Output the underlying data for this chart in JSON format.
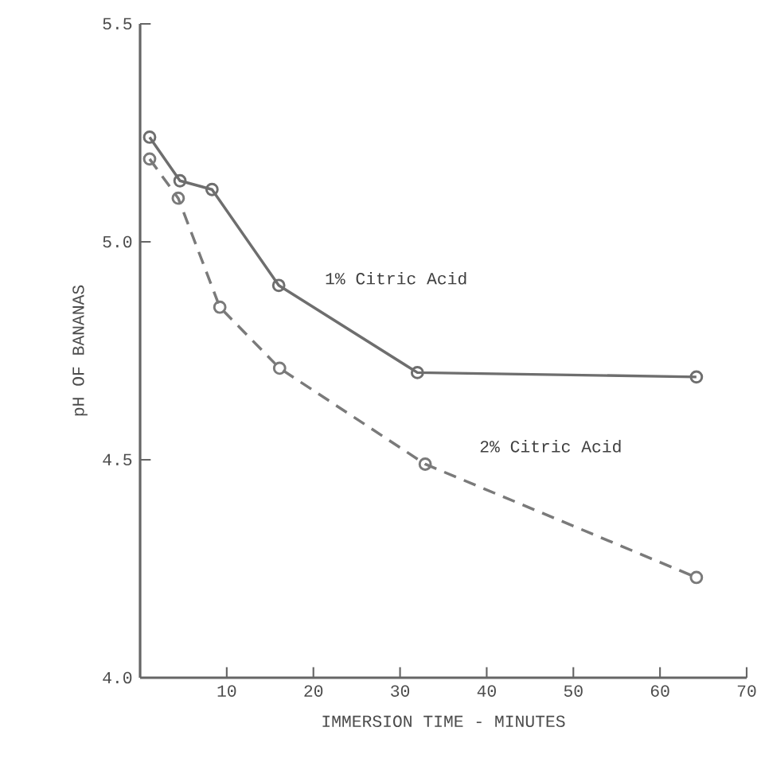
{
  "chart_data": {
    "type": "line",
    "xlabel": "IMMERSION TIME - MINUTES",
    "ylabel": "pH OF BANANAS",
    "xlim": [
      0,
      70
    ],
    "xticks": [
      10,
      20,
      30,
      40,
      50,
      60,
      70
    ],
    "ylim": [
      4.0,
      5.5
    ],
    "yticks": [
      {
        "value": 4.0,
        "label": "4.0"
      },
      4.5,
      {
        "value": 5.0,
        "label": "5.0"
      },
      5.5
    ],
    "grid": false,
    "legend": false,
    "marker": "circle",
    "series": [
      {
        "name": "1% Citric Acid",
        "color": "#6e6e6e",
        "line_style": "solid",
        "x": [
          1.1,
          4.6,
          8.3,
          16,
          32,
          64.2
        ],
        "values": [
          5.24,
          5.14,
          5.12,
          4.9,
          4.7,
          4.69
        ]
      },
      {
        "name": "2% Citric Acid",
        "color": "#7a7a7a",
        "line_style": "dashed",
        "x": [
          1.1,
          4.4,
          9.2,
          16.1,
          32.9,
          64.2
        ],
        "values": [
          5.19,
          5.1,
          4.85,
          4.71,
          4.49,
          4.23
        ]
      }
    ]
  }
}
